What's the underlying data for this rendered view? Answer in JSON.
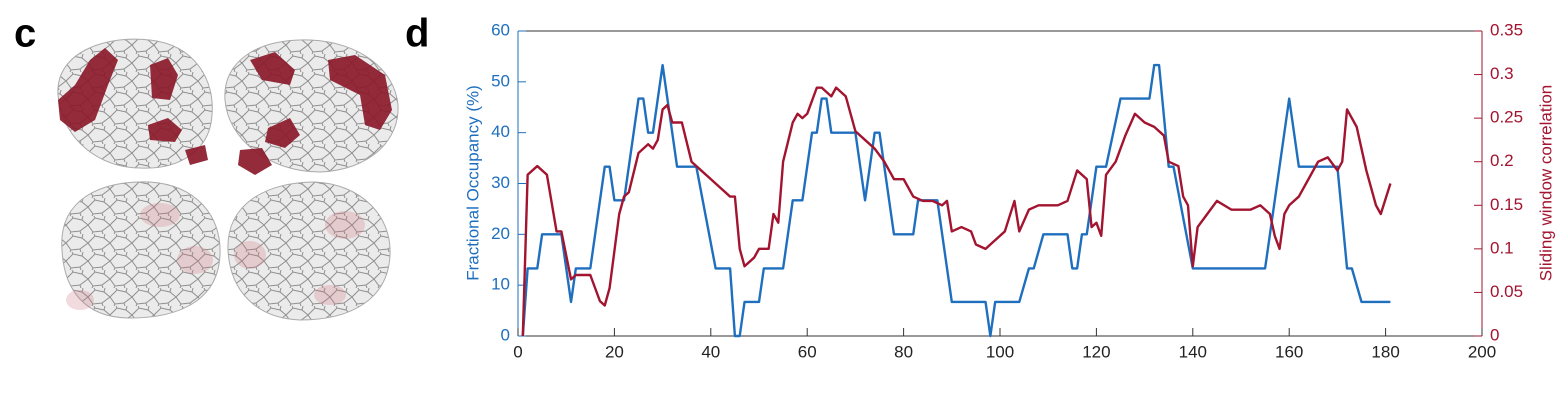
{
  "chart_data": {
    "type": "line",
    "panel_labels": [
      "c",
      "d"
    ],
    "ylabel": "Fractional Occupancy (%)",
    "y2label": "Sliding window correlation",
    "xlim": [
      0,
      200
    ],
    "xticks": [
      0,
      20,
      40,
      60,
      80,
      100,
      120,
      140,
      160,
      180,
      200
    ],
    "ylim": [
      0,
      60
    ],
    "yticks": [
      0,
      10,
      20,
      30,
      40,
      50,
      60
    ],
    "y2lim": [
      0,
      0.35
    ],
    "y2ticks": [
      0,
      0.05,
      0.1,
      0.15,
      0.2,
      0.25,
      0.3,
      0.35
    ],
    "series": [
      {
        "name": "Fractional Occupancy",
        "color": "#1f6fbf",
        "axis": "y",
        "x": [
          1,
          2,
          4,
          5,
          9,
          11,
          12,
          15,
          18,
          19,
          20,
          22,
          25,
          26,
          27,
          28,
          30,
          32,
          33,
          37,
          41,
          44,
          45,
          46,
          47,
          50,
          51,
          55,
          57,
          59,
          61,
          62,
          63,
          64,
          65,
          70,
          72,
          74,
          75,
          78,
          82,
          83,
          87,
          90,
          97,
          98,
          99,
          104,
          106,
          107,
          109,
          114,
          115,
          116,
          117,
          118,
          120,
          122,
          125,
          131,
          132,
          133,
          135,
          136,
          140,
          155,
          160,
          162,
          170,
          172,
          173,
          175,
          181
        ],
        "values": [
          0,
          13.3,
          13.3,
          20,
          20,
          6.7,
          13.3,
          13.3,
          33.3,
          33.3,
          26.7,
          26.7,
          46.7,
          46.7,
          40,
          40,
          53.3,
          40,
          33.3,
          33.3,
          13.3,
          13.3,
          0,
          0,
          6.7,
          6.7,
          13.3,
          13.3,
          26.7,
          26.7,
          40,
          40,
          46.7,
          46.7,
          40,
          40,
          26.7,
          40,
          40,
          20,
          20,
          26.7,
          26.7,
          6.7,
          6.7,
          0,
          6.7,
          6.7,
          13.3,
          13.3,
          20,
          20,
          13.3,
          13.3,
          20,
          20,
          33.3,
          33.3,
          46.7,
          46.7,
          53.3,
          53.3,
          33.3,
          33.3,
          13.3,
          13.3,
          46.7,
          33.3,
          33.3,
          13.3,
          13.3,
          6.7,
          6.7
        ]
      },
      {
        "name": "Sliding window correlation",
        "color": "#a2142f",
        "axis": "y2",
        "x": [
          1,
          2,
          4,
          6,
          8,
          9,
          11,
          12,
          15,
          17,
          18,
          19,
          21,
          22,
          23,
          25,
          27,
          28,
          29,
          30,
          31,
          32,
          34,
          36,
          38,
          40,
          42,
          44,
          45,
          46,
          47,
          49,
          50,
          52,
          53,
          54,
          55,
          57,
          58,
          59,
          60,
          62,
          63,
          64,
          65,
          66,
          67,
          68,
          70,
          72,
          74,
          76,
          78,
          80,
          82,
          84,
          86,
          88,
          89,
          90,
          92,
          94,
          95,
          97,
          99,
          101,
          103,
          104,
          106,
          108,
          112,
          114,
          116,
          118,
          119,
          120,
          121,
          122,
          124,
          126,
          128,
          130,
          132,
          134,
          135,
          137,
          138,
          139,
          140,
          141,
          143,
          145,
          148,
          150,
          152,
          154,
          156,
          157,
          158,
          159,
          160,
          162,
          164,
          166,
          168,
          170,
          171,
          172,
          174,
          176,
          178,
          179,
          181
        ],
        "values": [
          0,
          0.185,
          0.195,
          0.185,
          0.12,
          0.12,
          0.065,
          0.07,
          0.07,
          0.04,
          0.035,
          0.055,
          0.14,
          0.16,
          0.165,
          0.21,
          0.22,
          0.215,
          0.225,
          0.26,
          0.265,
          0.245,
          0.245,
          0.2,
          0.19,
          0.18,
          0.17,
          0.16,
          0.16,
          0.1,
          0.08,
          0.09,
          0.1,
          0.1,
          0.14,
          0.13,
          0.2,
          0.245,
          0.255,
          0.25,
          0.255,
          0.285,
          0.285,
          0.28,
          0.275,
          0.285,
          0.28,
          0.275,
          0.235,
          0.225,
          0.215,
          0.2,
          0.18,
          0.18,
          0.16,
          0.155,
          0.155,
          0.15,
          0.155,
          0.12,
          0.125,
          0.12,
          0.105,
          0.1,
          0.11,
          0.12,
          0.155,
          0.12,
          0.145,
          0.15,
          0.15,
          0.155,
          0.19,
          0.18,
          0.125,
          0.13,
          0.115,
          0.185,
          0.2,
          0.23,
          0.255,
          0.245,
          0.24,
          0.23,
          0.2,
          0.195,
          0.16,
          0.15,
          0.08,
          0.125,
          0.14,
          0.155,
          0.145,
          0.145,
          0.145,
          0.15,
          0.14,
          0.115,
          0.1,
          0.14,
          0.15,
          0.16,
          0.18,
          0.2,
          0.205,
          0.19,
          0.2,
          0.26,
          0.24,
          0.19,
          0.15,
          0.14,
          0.175
        ]
      }
    ]
  }
}
